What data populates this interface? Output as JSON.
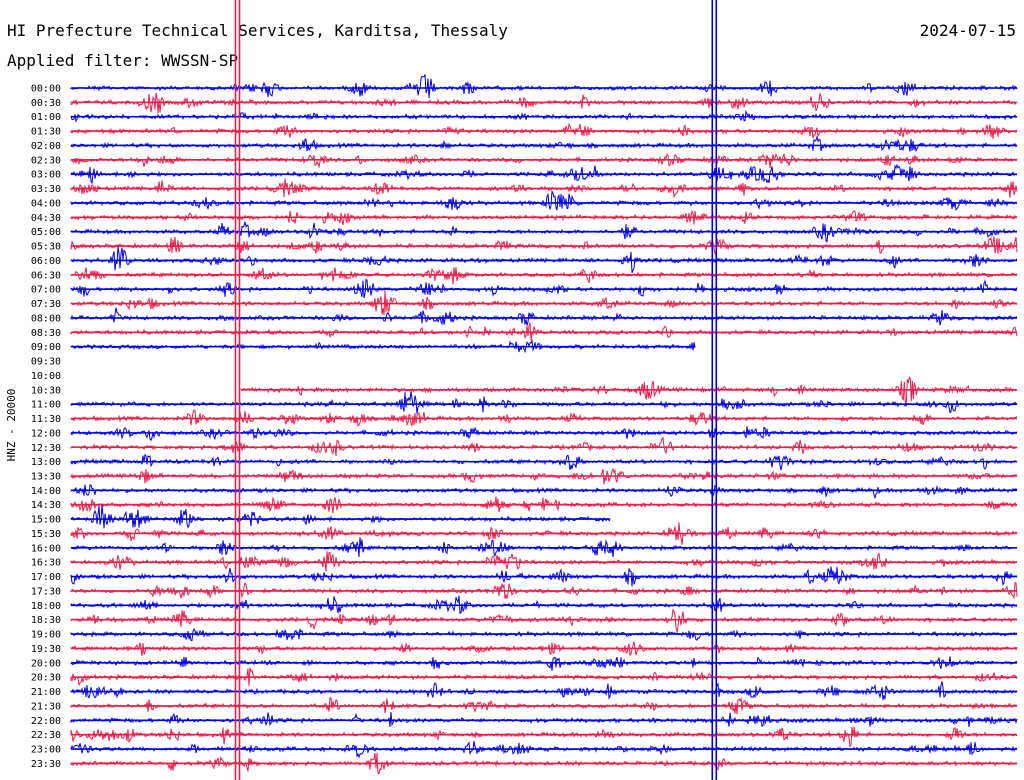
{
  "header": {
    "station": "HI Prefecture Technical Services, Karditsa, Thessaly",
    "date": "2024-07-15",
    "filter": "Applied filter: WWSSN-SP"
  },
  "axis": {
    "ylabel": "HNZ - 20000"
  },
  "colors": {
    "odd_trace": "#0000ee",
    "even_trace": "#ee1c48",
    "background": "#ffffff",
    "text": "#000000"
  },
  "chart_data": {
    "type": "line",
    "title": "",
    "xlabel": "",
    "ylabel": "HNZ - 20000",
    "grid": false,
    "rows": [
      {
        "label": "00:00",
        "coverage": [
          0,
          1
        ]
      },
      {
        "label": "00:30",
        "coverage": [
          0,
          1
        ]
      },
      {
        "label": "01:00",
        "coverage": [
          0,
          1
        ]
      },
      {
        "label": "01:30",
        "coverage": [
          0,
          1
        ]
      },
      {
        "label": "02:00",
        "coverage": [
          0,
          1
        ]
      },
      {
        "label": "02:30",
        "coverage": [
          0,
          1
        ]
      },
      {
        "label": "03:00",
        "coverage": [
          0,
          1
        ]
      },
      {
        "label": "03:30",
        "coverage": [
          0,
          1
        ]
      },
      {
        "label": "04:00",
        "coverage": [
          0,
          1
        ]
      },
      {
        "label": "04:30",
        "coverage": [
          0,
          1
        ]
      },
      {
        "label": "05:00",
        "coverage": [
          0,
          1
        ]
      },
      {
        "label": "05:30",
        "coverage": [
          0,
          1
        ]
      },
      {
        "label": "06:00",
        "coverage": [
          0,
          1
        ]
      },
      {
        "label": "06:30",
        "coverage": [
          0,
          1
        ]
      },
      {
        "label": "07:00",
        "coverage": [
          0,
          1
        ]
      },
      {
        "label": "07:30",
        "coverage": [
          0,
          1
        ]
      },
      {
        "label": "08:00",
        "coverage": [
          0,
          1
        ]
      },
      {
        "label": "08:30",
        "coverage": [
          0,
          1
        ]
      },
      {
        "label": "09:00",
        "coverage": [
          0,
          0.66
        ]
      },
      {
        "label": "09:30",
        "coverage": null
      },
      {
        "label": "10:00",
        "coverage": null
      },
      {
        "label": "10:30",
        "coverage": [
          0.18,
          1
        ]
      },
      {
        "label": "11:00",
        "coverage": [
          0,
          1
        ]
      },
      {
        "label": "11:30",
        "coverage": [
          0,
          1
        ]
      },
      {
        "label": "12:00",
        "coverage": [
          0,
          1
        ]
      },
      {
        "label": "12:30",
        "coverage": [
          0,
          1
        ]
      },
      {
        "label": "13:00",
        "coverage": [
          0,
          1
        ]
      },
      {
        "label": "13:30",
        "coverage": [
          0,
          1
        ]
      },
      {
        "label": "14:00",
        "coverage": [
          0,
          1
        ]
      },
      {
        "label": "14:30",
        "coverage": [
          0,
          1
        ]
      },
      {
        "label": "15:00",
        "coverage": [
          0,
          0.57
        ]
      },
      {
        "label": "15:30",
        "coverage": [
          0,
          1
        ]
      },
      {
        "label": "16:00",
        "coverage": [
          0,
          1
        ]
      },
      {
        "label": "16:30",
        "coverage": [
          0,
          1
        ]
      },
      {
        "label": "17:00",
        "coverage": [
          0,
          1
        ]
      },
      {
        "label": "17:30",
        "coverage": [
          0,
          1
        ]
      },
      {
        "label": "18:00",
        "coverage": [
          0,
          1
        ]
      },
      {
        "label": "18:30",
        "coverage": [
          0,
          1
        ]
      },
      {
        "label": "19:00",
        "coverage": [
          0,
          1
        ]
      },
      {
        "label": "19:30",
        "coverage": [
          0,
          1
        ]
      },
      {
        "label": "20:00",
        "coverage": [
          0,
          1
        ]
      },
      {
        "label": "20:30",
        "coverage": [
          0,
          1
        ]
      },
      {
        "label": "21:00",
        "coverage": [
          0,
          1
        ]
      },
      {
        "label": "21:30",
        "coverage": [
          0,
          1
        ]
      },
      {
        "label": "22:00",
        "coverage": [
          0,
          1
        ]
      },
      {
        "label": "22:30",
        "coverage": [
          0,
          1
        ]
      },
      {
        "label": "23:00",
        "coverage": [
          0,
          1
        ]
      },
      {
        "label": "23:30",
        "coverage": [
          0,
          1
        ]
      }
    ],
    "vertical_markers": [
      {
        "position": 0.176,
        "color": "#ee1c48"
      },
      {
        "position": 0.68,
        "color": "#0000ee"
      }
    ]
  }
}
